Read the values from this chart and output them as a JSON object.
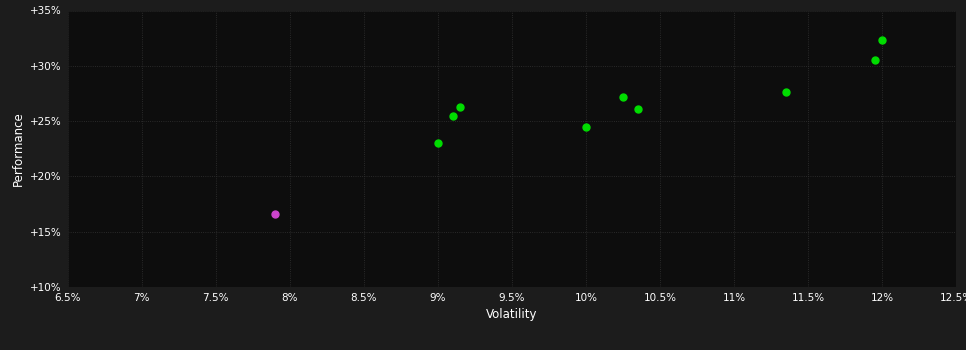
{
  "background_color": "#1c1c1c",
  "plot_bg_color": "#0d0d0d",
  "grid_color": "#333333",
  "text_color": "#ffffff",
  "xlabel": "Volatility",
  "ylabel": "Performance",
  "xlim": [
    0.065,
    0.125
  ],
  "ylim": [
    0.1,
    0.35
  ],
  "xticks": [
    0.065,
    0.07,
    0.075,
    0.08,
    0.085,
    0.09,
    0.095,
    0.1,
    0.105,
    0.11,
    0.115,
    0.12,
    0.125
  ],
  "yticks": [
    0.1,
    0.15,
    0.2,
    0.25,
    0.3,
    0.35
  ],
  "green_points": [
    [
      0.09,
      0.23
    ],
    [
      0.091,
      0.255
    ],
    [
      0.0915,
      0.263
    ],
    [
      0.1,
      0.245
    ],
    [
      0.1025,
      0.272
    ],
    [
      0.1035,
      0.261
    ],
    [
      0.1135,
      0.276
    ],
    [
      0.1195,
      0.305
    ],
    [
      0.12,
      0.323
    ]
  ],
  "magenta_points": [
    [
      0.079,
      0.166
    ]
  ],
  "green_color": "#00dd00",
  "magenta_color": "#cc44cc",
  "marker_size": 5
}
